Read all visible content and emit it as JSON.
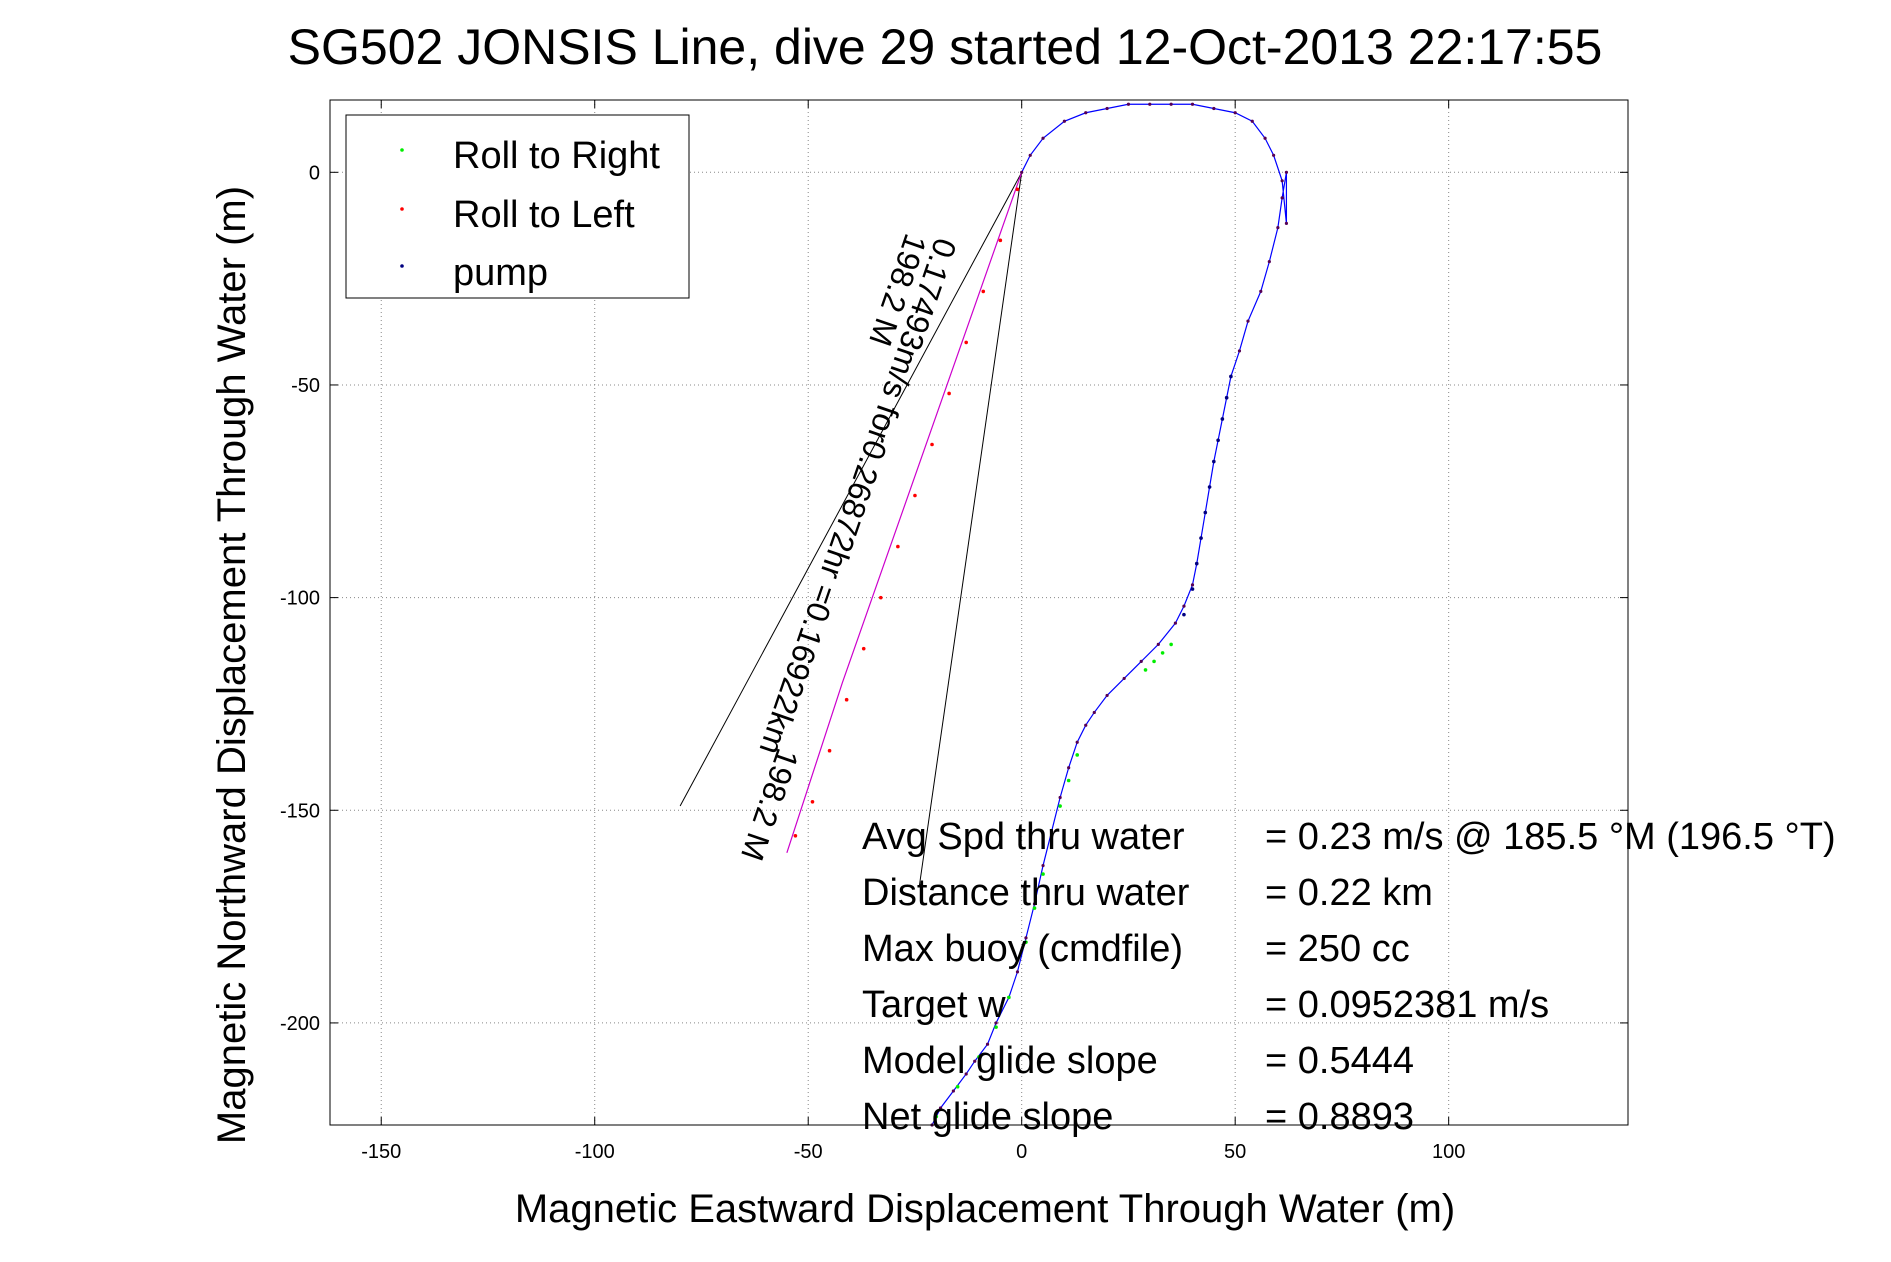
{
  "chart_data": {
    "type": "line",
    "title": "SG502 JONSIS Line, dive 29 started 12-Oct-2013 22:17:55",
    "xlabel": "Magnetic Eastward Displacement Through Water (m)",
    "ylabel": "Magnetic Northward Displacement Through Water (m)",
    "xlim": [
      -162,
      142
    ],
    "ylim": [
      -224,
      17
    ],
    "xticks": [
      -150,
      -100,
      -50,
      0,
      50,
      100
    ],
    "yticks": [
      0,
      -50,
      -100,
      -150,
      -200
    ],
    "grid": true,
    "legend_position": "top-left",
    "legend": [
      {
        "label": "Roll to Right",
        "color": "#00ee00"
      },
      {
        "label": "Roll to Left",
        "color": "#ff0000"
      },
      {
        "label": "pump",
        "color": "#000080"
      }
    ],
    "track": {
      "color": "#0000ff",
      "x": [
        -21,
        -19,
        -16,
        -13,
        -11,
        -8,
        -6,
        -3,
        -1,
        1,
        3,
        5,
        7,
        9,
        11,
        13,
        15,
        17,
        20,
        24,
        28,
        32,
        36,
        38,
        40,
        41,
        42,
        43,
        44,
        45,
        46,
        47,
        48,
        49,
        51,
        53,
        56,
        58,
        60,
        61,
        62,
        62,
        61,
        59,
        57,
        54,
        50,
        45,
        40,
        35,
        30,
        25,
        20,
        15,
        10,
        5,
        2,
        0
      ],
      "y": [
        -224,
        -220,
        -216,
        -212,
        -209,
        -205,
        -200,
        -194,
        -188,
        -180,
        -172,
        -163,
        -155,
        -147,
        -140,
        -134,
        -130,
        -127,
        -123,
        -119,
        -115,
        -111,
        -106,
        -102,
        -97,
        -92,
        -86,
        -80,
        -74,
        -68,
        -63,
        -58,
        -53,
        -48,
        -42,
        -35,
        -28,
        -21,
        -13,
        -6,
        0,
        -12,
        -2,
        4,
        8,
        12,
        14,
        15,
        16,
        16,
        16,
        16,
        15,
        14,
        12,
        8,
        4,
        0
      ]
    },
    "purple_line": {
      "color": "#cc00cc",
      "x": [
        0,
        -14,
        -28,
        -42,
        -55
      ],
      "y": [
        0,
        -40,
        -80,
        -120,
        -160
      ]
    },
    "markers": {
      "roll_right": {
        "color": "#00ee00",
        "x": [
          -20,
          -15,
          -10,
          -6,
          -3,
          1,
          3,
          5,
          9,
          11,
          13,
          29,
          31,
          33,
          35
        ],
        "y": [
          -222,
          -215,
          -208,
          -201,
          -194,
          -181,
          -173,
          -165,
          -149,
          -143,
          -137,
          -117,
          -115,
          -113,
          -111
        ]
      },
      "roll_left": {
        "color": "#ff0000",
        "x": [
          -1,
          -5,
          -9,
          -13,
          -17,
          -21,
          -25,
          -29,
          -33,
          -37,
          -41,
          -45,
          -49,
          -53
        ],
        "y": [
          -4,
          -16,
          -28,
          -40,
          -52,
          -64,
          -76,
          -88,
          -100,
          -112,
          -124,
          -136,
          -148,
          -156
        ]
      },
      "pump": {
        "color": "#000080",
        "x": [
          38,
          40,
          41,
          42,
          43,
          44,
          45,
          46,
          47,
          48,
          49
        ],
        "y": [
          -104,
          -98,
          -92,
          -86,
          -80,
          -74,
          -68,
          -63,
          -58,
          -53,
          -48
        ]
      }
    },
    "heading_lines": [
      {
        "color": "#000000",
        "x": [
          0,
          -80
        ],
        "y": [
          0,
          -149
        ]
      },
      {
        "color": "#000000",
        "x": [
          0,
          -24
        ],
        "y": [
          0,
          -168
        ]
      }
    ],
    "annotations": [
      {
        "text": "0.17493m/s for0.26872hr =0.16922km",
        "x": -20,
        "y": -15
      },
      {
        "text": "198.2 M",
        "x": -27,
        "y": -14
      },
      {
        "text": "198.2 M",
        "x": -57,
        "y": -135
      }
    ],
    "stats": [
      {
        "label": "Avg Spd thru water",
        "value": "=  0.23 m/s @ 185.5 °M (196.5 °T)"
      },
      {
        "label": "Distance thru water",
        "value": "=  0.22 km"
      },
      {
        "label": "Max buoy (cmdfile)",
        "value": "= 250 cc"
      },
      {
        "label": "Target w",
        "value": "= 0.0952381 m/s"
      },
      {
        "label": "Model glide slope",
        "value": "= 0.5444"
      },
      {
        "label": "Net glide slope",
        "value": "= 0.8893"
      }
    ]
  }
}
